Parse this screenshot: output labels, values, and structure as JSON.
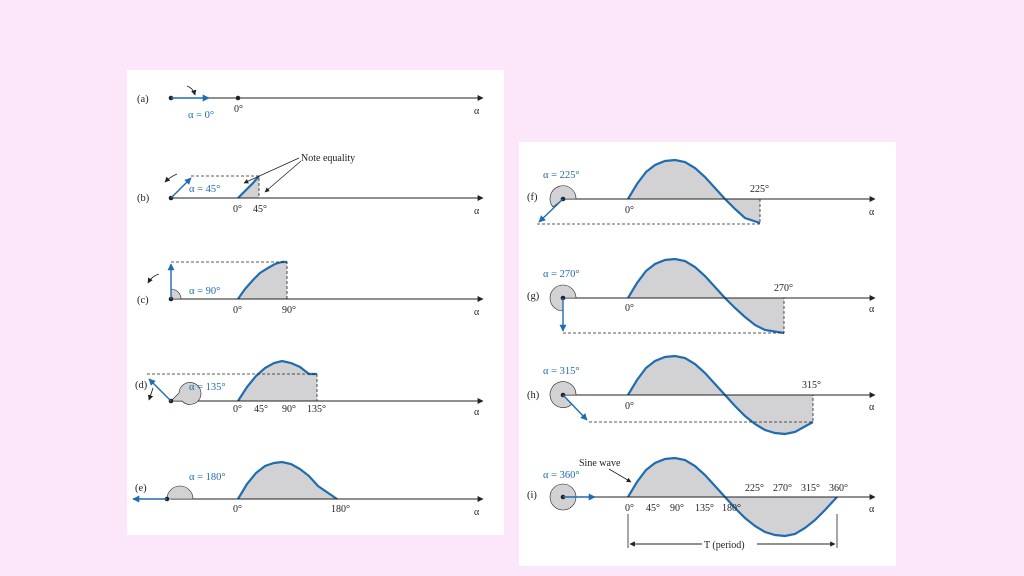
{
  "colors": {
    "background": "#fbe6fa",
    "panel": "#ffffff",
    "phasor_blue": "#1f6cb0",
    "shade": "#d2d2d4"
  },
  "axis_label": "α",
  "left_figure": [
    {
      "id": "a",
      "label": "(a)",
      "angle_label": "α = 0°",
      "ticks": [
        "0°"
      ]
    },
    {
      "id": "b",
      "label": "(b)",
      "angle_label": "α = 45°",
      "ticks": [
        "0°",
        "45°"
      ],
      "annotation": "Note equality"
    },
    {
      "id": "c",
      "label": "(c)",
      "angle_label": "α = 90°",
      "ticks": [
        "0°",
        "90°"
      ]
    },
    {
      "id": "d",
      "label": "(d)",
      "angle_label": "α = 135°",
      "ticks": [
        "0°",
        "45°",
        "90°",
        "135°"
      ]
    },
    {
      "id": "e",
      "label": "(e)",
      "angle_label": "α = 180°",
      "ticks": [
        "0°",
        "180°"
      ]
    }
  ],
  "right_figure": [
    {
      "id": "f",
      "label": "(f)",
      "angle_label": "α = 225°",
      "ticks": [
        "0°",
        "225°"
      ]
    },
    {
      "id": "g",
      "label": "(g)",
      "angle_label": "α = 270°",
      "ticks": [
        "0°",
        "270°"
      ]
    },
    {
      "id": "h",
      "label": "(h)",
      "angle_label": "α = 315°",
      "ticks": [
        "0°",
        "315°"
      ]
    },
    {
      "id": "i",
      "label": "(i)",
      "angle_label": "α = 360°",
      "ticks_below": [
        "0°",
        "45°",
        "90°",
        "135°",
        "180°"
      ],
      "ticks_above": [
        "225°",
        "270°",
        "315°",
        "360°"
      ],
      "annotation": "Sine wave",
      "period_label": "T (period)"
    }
  ]
}
